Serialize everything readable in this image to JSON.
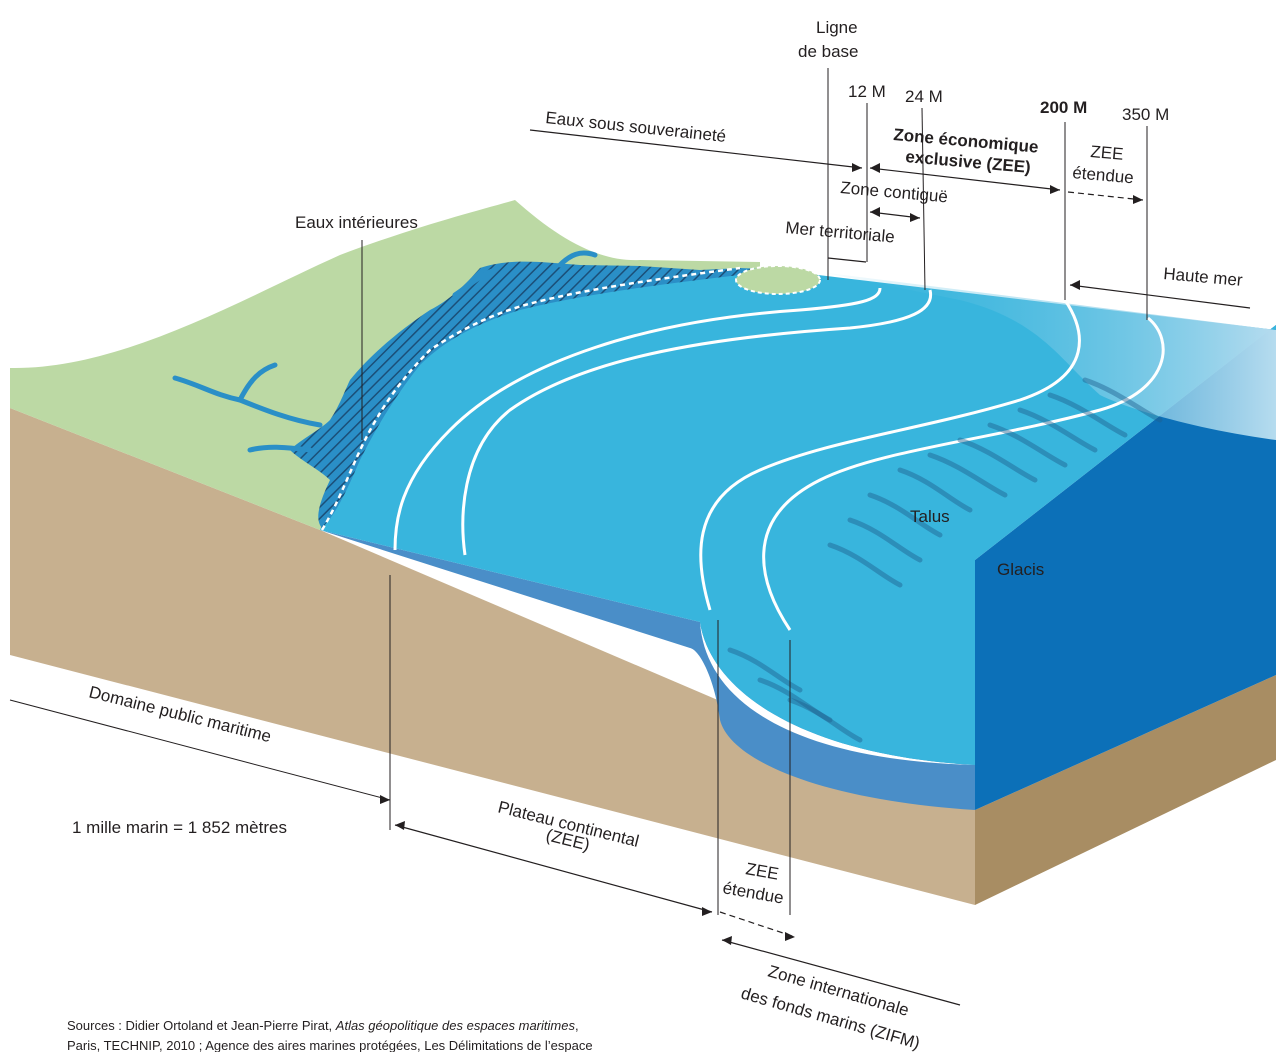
{
  "labels": {
    "ligne_de_base_1": "Ligne",
    "ligne_de_base_2": "de base",
    "m12": "12 M",
    "m24": "24 M",
    "m200": "200 M",
    "m350": "350 M",
    "eaux_souverainete": "Eaux sous souveraineté",
    "zee_1": "Zone économique",
    "zee_2": "exclusive (ZEE)",
    "zee_etendue_top_1": "ZEE",
    "zee_etendue_top_2": "étendue",
    "zone_contigue": "Zone contiguë",
    "mer_territoriale": "Mer territoriale",
    "eaux_interieures": "Eaux intérieures",
    "haute_mer": "Haute mer",
    "talus": "Talus",
    "glacis": "Glacis",
    "domaine_public": "Domaine public maritime",
    "mille_marin": "1 mille marin = 1 852 mètres",
    "plateau_1": "Plateau continental",
    "plateau_2": "(ZEE)",
    "zee_etendue_bottom_1": "ZEE",
    "zee_etendue_bottom_2": "étendue",
    "zifm_1": "Zone internationale",
    "zifm_2": "des fonds marins (ZIFM)"
  },
  "sources": {
    "line1_prefix": "Sources : Didier Ortoland et Jean-Pierre Pirat, ",
    "line1_title": "Atlas géopolitique des espaces maritimes",
    "line1_suffix": ",",
    "line2": "Paris, TECHNIP, 2010 ; Agence des aires marines protégées, Les Délimitations de l’espace"
  },
  "colors": {
    "land": "#bcd9a4",
    "soil_front": "#c7b08f",
    "soil_side": "#a88d63",
    "sea_shelf": "#38b5dd",
    "sea_front": "#4a8ec8",
    "sea_deep_side": "#0c70b8",
    "sea_pale": "#a9d6ec",
    "river": "#2a8fc7",
    "hatch": "#1f5f8e",
    "text": "#231f20"
  }
}
